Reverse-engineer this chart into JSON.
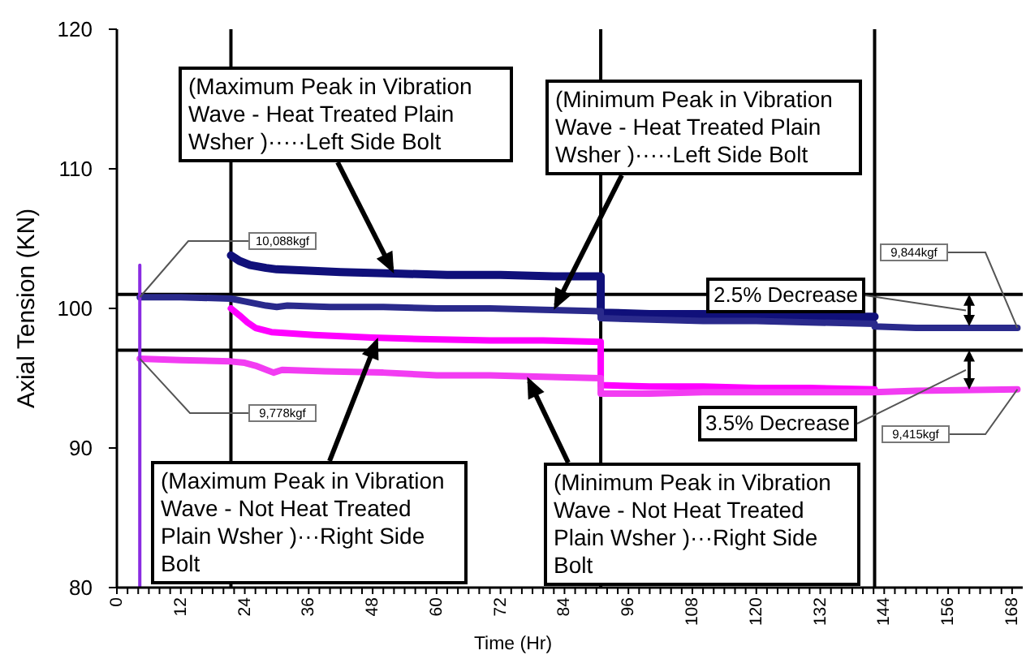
{
  "chart_data": {
    "type": "line",
    "xlabel": "Time (Hr)",
    "ylabel": "Axial Tension (KN)",
    "xlim": [
      0,
      170
    ],
    "ylim": [
      80,
      120
    ],
    "xticks": [
      0,
      {
        "value": 2,
        "label": null
      },
      {
        "value": 4,
        "label": null
      },
      {
        "value": 6,
        "label": null
      },
      {
        "value": 8,
        "label": null
      },
      {
        "value": 10,
        "label": null
      },
      12,
      {
        "value": 14,
        "label": null
      },
      {
        "value": 16,
        "label": null
      },
      {
        "value": 18,
        "label": null
      },
      {
        "value": 20,
        "label": null
      },
      {
        "value": 22,
        "label": null
      },
      24,
      {
        "value": 26,
        "label": null
      },
      {
        "value": 28,
        "label": null
      },
      {
        "value": 30,
        "label": null
      },
      {
        "value": 32,
        "label": null
      },
      {
        "value": 34,
        "label": null
      },
      36,
      {
        "value": 38,
        "label": null
      },
      {
        "value": 40,
        "label": null
      },
      {
        "value": 42,
        "label": null
      },
      {
        "value": 44,
        "label": null
      },
      {
        "value": 46,
        "label": null
      },
      48,
      {
        "value": 50,
        "label": null
      },
      {
        "value": 52,
        "label": null
      },
      {
        "value": 54,
        "label": null
      },
      {
        "value": 56,
        "label": null
      },
      {
        "value": 58,
        "label": null
      },
      60,
      {
        "value": 62,
        "label": null
      },
      {
        "value": 64,
        "label": null
      },
      {
        "value": 66,
        "label": null
      },
      {
        "value": 68,
        "label": null
      },
      {
        "value": 70,
        "label": null
      },
      72,
      {
        "value": 74,
        "label": null
      },
      {
        "value": 76,
        "label": null
      },
      {
        "value": 78,
        "label": null
      },
      {
        "value": 80,
        "label": null
      },
      {
        "value": 82,
        "label": null
      },
      84,
      {
        "value": 86,
        "label": null
      },
      {
        "value": 88,
        "label": null
      },
      {
        "value": 90,
        "label": null
      },
      {
        "value": 92,
        "label": null
      },
      {
        "value": 94,
        "label": null
      },
      96,
      {
        "value": 98,
        "label": null
      },
      {
        "value": 100,
        "label": null
      },
      {
        "value": 102,
        "label": null
      },
      {
        "value": 104,
        "label": null
      },
      {
        "value": 106,
        "label": null
      },
      108,
      {
        "value": 110,
        "label": null
      },
      {
        "value": 112,
        "label": null
      },
      {
        "value": 114,
        "label": null
      },
      {
        "value": 116,
        "label": null
      },
      {
        "value": 118,
        "label": null
      },
      120,
      {
        "value": 122,
        "label": null
      },
      {
        "value": 124,
        "label": null
      },
      {
        "value": 126,
        "label": null
      },
      {
        "value": 128,
        "label": null
      },
      {
        "value": 130,
        "label": null
      },
      132,
      {
        "value": 134,
        "label": null
      },
      {
        "value": 136,
        "label": null
      },
      {
        "value": 138,
        "label": null
      },
      {
        "value": 140,
        "label": null
      },
      {
        "value": 142,
        "label": null
      },
      144,
      {
        "value": 146,
        "label": null
      },
      {
        "value": 148,
        "label": null
      },
      {
        "value": 150,
        "label": null
      },
      {
        "value": 152,
        "label": null
      },
      {
        "value": 154,
        "label": null
      },
      156,
      {
        "value": 158,
        "label": null
      },
      {
        "value": 160,
        "label": null
      },
      {
        "value": 162,
        "label": null
      },
      {
        "value": 164,
        "label": null
      },
      {
        "value": 166,
        "label": null
      },
      168
    ],
    "yticks": [
      80,
      90,
      100,
      110,
      120
    ],
    "series": [
      {
        "color": "#10107a",
        "x": [
          21.4,
          23,
          25,
          28,
          30,
          36,
          42,
          52,
          62,
          72,
          82,
          90.8,
          90.8,
          100,
          110,
          120,
          130,
          142.2
        ],
        "values": [
          103.8,
          103.4,
          103.1,
          102.9,
          102.8,
          102.7,
          102.6,
          102.5,
          102.4,
          102.4,
          102.3,
          102.3,
          99.7,
          99.6,
          99.6,
          99.5,
          99.4,
          99.4
        ]
      },
      {
        "color": "#2a2a8c",
        "x": [
          4.3,
          12,
          21.4,
          24,
          28,
          30,
          32,
          40,
          50,
          60,
          70,
          80,
          90.8,
          90.8,
          100,
          110,
          120,
          130,
          142.2,
          142.2,
          150,
          169
        ],
        "values": [
          100.8,
          100.8,
          100.7,
          100.5,
          100.2,
          100.1,
          100.2,
          100.1,
          100.1,
          100.0,
          100.0,
          99.9,
          99.8,
          99.3,
          99.2,
          99.1,
          99.1,
          99.0,
          98.9,
          98.7,
          98.6,
          98.6
        ]
      },
      {
        "color": "#ff00ff",
        "x": [
          21.4,
          23,
          24.5,
          26,
          29,
          37,
          48,
          57,
          70,
          80,
          90.8,
          90.8,
          100,
          110,
          120,
          130,
          142.2
        ],
        "values": [
          100.0,
          99.5,
          99.0,
          98.6,
          98.3,
          98.1,
          97.9,
          97.8,
          97.7,
          97.7,
          97.6,
          94.5,
          94.4,
          94.4,
          94.3,
          94.3,
          94.2
        ]
      },
      {
        "color": "#f23cf2",
        "x": [
          4.3,
          12,
          21.4,
          24,
          26,
          29.4,
          31,
          39,
          50,
          60,
          70,
          80,
          90.8,
          90.8,
          100,
          110,
          120,
          130,
          142.2,
          150,
          169
        ],
        "values": [
          96.4,
          96.3,
          96.2,
          96.1,
          95.9,
          95.4,
          95.6,
          95.5,
          95.4,
          95.2,
          95.2,
          95.1,
          95.0,
          93.9,
          93.9,
          94.0,
          94.0,
          94.0,
          94.0,
          94.1,
          94.2
        ]
      },
      {
        "color": "#8a2be2",
        "x": [
          4.3,
          4.3
        ],
        "values": [
          80,
          103.1
        ]
      }
    ],
    "ref_lines": [
      {
        "axis": "y",
        "value": 101.0,
        "color": "#000000"
      },
      {
        "axis": "y",
        "value": 97.0,
        "color": "#000000"
      },
      {
        "axis": "x",
        "value": 21.4,
        "color": "#000000"
      },
      {
        "axis": "x",
        "value": 90.8,
        "color": "#000000"
      },
      {
        "axis": "x",
        "value": 142.2,
        "color": "#000000"
      }
    ],
    "annotations": [
      {
        "text": "(Maximum Peak in Vibration Wave - Heat Treated Plain Wsher )·····Left Side Bolt",
        "x": 52,
        "y": 102.5
      },
      {
        "text": "(Minimum Peak in Vibration Wave - Heat Treated Plain Wsher )·····Left Side Bolt",
        "x": 82,
        "y": 99.9
      },
      {
        "text": "(Maximum Peak in Vibration Wave - Not Heat Treated Plain Wsher )···Right Side Bolt",
        "x": 49,
        "y": 97.9
      },
      {
        "text": "(Minimum Peak in Vibration Wave - Not Heat Treated Plain Wsher )···Right Side Bolt",
        "x": 77,
        "y": 95.1
      },
      {
        "text": "10,088kgf",
        "x": 4.3,
        "y": 100.8
      },
      {
        "text": "9,778kgf",
        "x": 4.3,
        "y": 96.4
      },
      {
        "text": "9,844kgf",
        "x": 169,
        "y": 98.6
      },
      {
        "text": "9,415kgf",
        "x": 169,
        "y": 94.2
      },
      "2.5% Decrease",
      "3.5% Decrease"
    ]
  }
}
